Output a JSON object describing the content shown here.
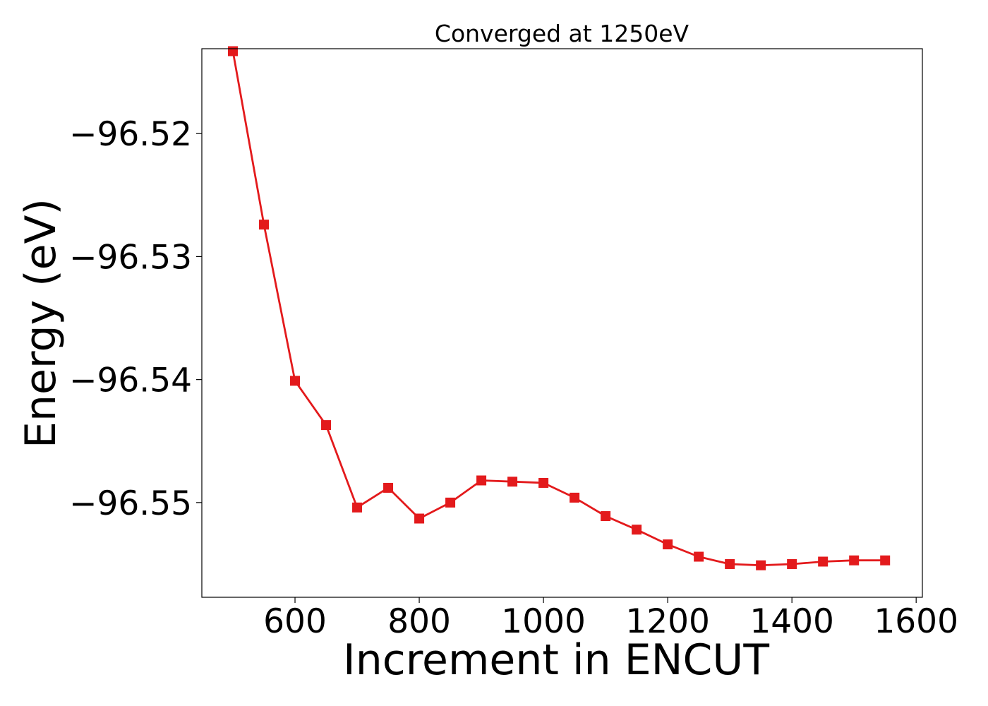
{
  "chart_data": {
    "type": "line",
    "title": "Converged at 1250eV",
    "xlabel": "Increment in ENCUT",
    "ylabel": "Energy (eV)",
    "xlim": [
      450,
      1610
    ],
    "ylim": [
      -96.5577,
      -96.5131
    ],
    "xticks": [
      600,
      800,
      1000,
      1200,
      1400,
      1600
    ],
    "xtick_labels": [
      "600",
      "800",
      "1000",
      "1200",
      "1400",
      "1600"
    ],
    "yticks": [
      -96.52,
      -96.53,
      -96.54,
      -96.55
    ],
    "ytick_labels": [
      "−96.52",
      "−96.53",
      "−96.54",
      "−96.55"
    ],
    "grid": false,
    "series": [
      {
        "color": "#e31a1c",
        "marker": "square",
        "x": [
          500,
          550,
          600,
          650,
          700,
          750,
          800,
          850,
          900,
          950,
          1000,
          1050,
          1100,
          1150,
          1200,
          1250,
          1300,
          1350,
          1400,
          1450,
          1500,
          1550
        ],
        "y": [
          -96.5133,
          -96.5274,
          -96.5401,
          -96.5437,
          -96.5504,
          -96.5488,
          -96.5513,
          -96.55,
          -96.5482,
          -96.5483,
          -96.5484,
          -96.5496,
          -96.5511,
          -96.5522,
          -96.5534,
          -96.5544,
          -96.555,
          -96.5551,
          -96.555,
          -96.5548,
          -96.5547,
          -96.5547
        ]
      }
    ]
  }
}
